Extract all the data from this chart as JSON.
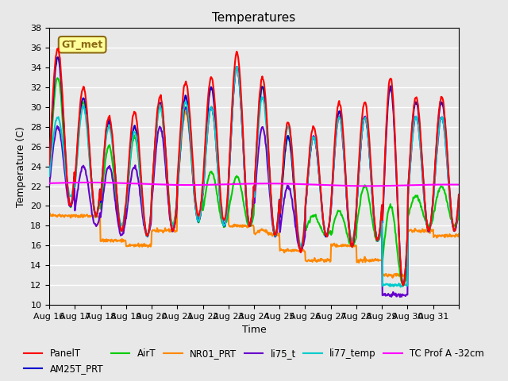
{
  "title": "Temperatures",
  "xlabel": "Time",
  "ylabel": "Temperature (C)",
  "ylim": [
    10,
    38
  ],
  "yticks": [
    10,
    12,
    14,
    16,
    18,
    20,
    22,
    24,
    26,
    28,
    30,
    32,
    34,
    36,
    38
  ],
  "x_labels": [
    "Aug 16",
    "Aug 17",
    "Aug 18",
    "Aug 19",
    "Aug 20",
    "Aug 21",
    "Aug 22",
    "Aug 23",
    "Aug 24",
    "Aug 25",
    "Aug 26",
    "Aug 27",
    "Aug 28",
    "Aug 29",
    "Aug 30",
    "Aug 31",
    ""
  ],
  "annotation_text": "GT_met",
  "annotation_color": "#8B6914",
  "annotation_bg": "#FFFF99",
  "series": {
    "PanelT": {
      "color": "#FF0000",
      "linewidth": 1.5
    },
    "AM25T_PRT": {
      "color": "#0000CC",
      "linewidth": 1.5
    },
    "AirT": {
      "color": "#00CC00",
      "linewidth": 1.5
    },
    "NR01_PRT": {
      "color": "#FF8800",
      "linewidth": 1.5
    },
    "li75_t": {
      "color": "#6600CC",
      "linewidth": 1.5
    },
    "li77_temp": {
      "color": "#00CCCC",
      "linewidth": 1.5
    },
    "TC Prof A -32cm": {
      "color": "#FF00FF",
      "linewidth": 1.5
    }
  },
  "background_color": "#E8E8E8",
  "grid_color": "#FFFFFF",
  "legend_fontsize": 8.5,
  "title_fontsize": 11
}
